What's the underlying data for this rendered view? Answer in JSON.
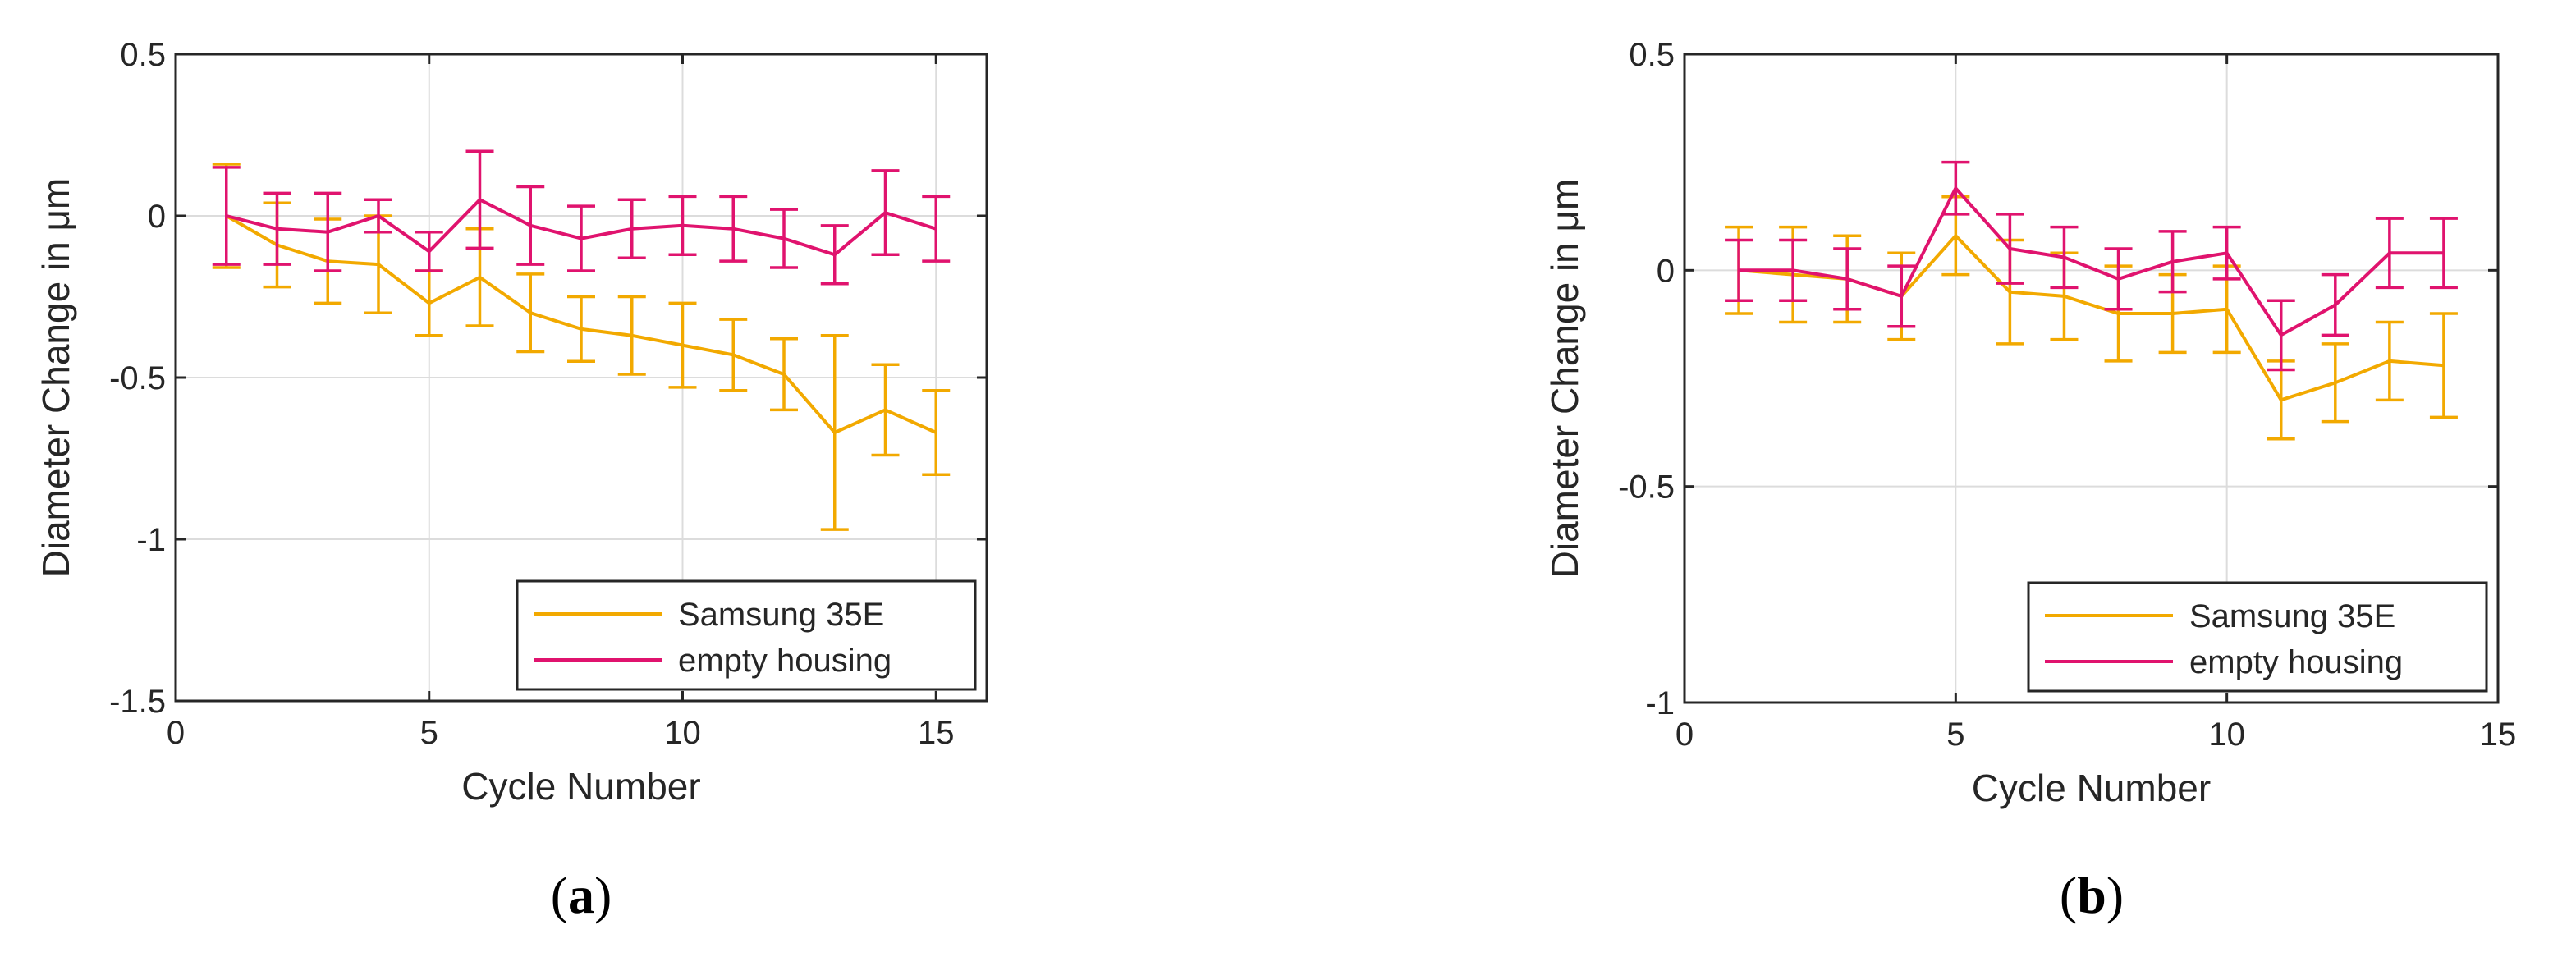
{
  "figure": {
    "colors": {
      "samsung": "#f2a900",
      "empty": "#e0136e",
      "grid": "#dcdcdc",
      "axis": "#262626"
    }
  },
  "chart_data": [
    {
      "type": "line",
      "panel_label": "a",
      "title": "",
      "xlabel": "Cycle Number",
      "ylabel": "Diameter Change in μm",
      "xlim": [
        0,
        16
      ],
      "ylim": [
        -1.5,
        0.5
      ],
      "xticks": [
        0,
        5,
        10,
        15
      ],
      "xtick_labels": [
        "0",
        "5",
        "10",
        "15"
      ],
      "yticks": [
        0.5,
        0,
        -0.5,
        -1,
        -1.5
      ],
      "ytick_labels": [
        "0.5",
        "0",
        "-0.5",
        "-1",
        "-1.5"
      ],
      "grid": true,
      "legend_position": "bottom-right",
      "series": [
        {
          "name": "Samsung 35E",
          "color_key": "samsung",
          "x": [
            1,
            2,
            3,
            4,
            5,
            6,
            7,
            8,
            9,
            10,
            11,
            12,
            13,
            14,
            15
          ],
          "values": [
            0,
            -0.09,
            -0.14,
            -0.15,
            -0.27,
            -0.19,
            -0.3,
            -0.35,
            -0.37,
            -0.4,
            -0.43,
            -0.49,
            -0.67,
            -0.6,
            -0.67
          ],
          "errors": [
            0.16,
            0.13,
            0.13,
            0.15,
            0.1,
            0.15,
            0.12,
            0.1,
            0.12,
            0.13,
            0.11,
            0.11,
            0.3,
            0.14,
            0.13
          ]
        },
        {
          "name": "empty housing",
          "color_key": "empty",
          "x": [
            1,
            2,
            3,
            4,
            5,
            6,
            7,
            8,
            9,
            10,
            11,
            12,
            13,
            14,
            15
          ],
          "values": [
            0,
            -0.04,
            -0.05,
            0,
            -0.11,
            0.05,
            -0.03,
            -0.07,
            -0.04,
            -0.03,
            -0.04,
            -0.07,
            -0.12,
            0.01,
            -0.04
          ],
          "errors": [
            0.15,
            0.11,
            0.12,
            0.05,
            0.06,
            0.15,
            0.12,
            0.1,
            0.09,
            0.09,
            0.1,
            0.09,
            0.09,
            0.13,
            0.1
          ]
        }
      ]
    },
    {
      "type": "line",
      "panel_label": "b",
      "title": "",
      "xlabel": "Cycle Number",
      "ylabel": "Diameter Change in μm",
      "xlim": [
        0,
        15
      ],
      "ylim": [
        -1,
        0.5
      ],
      "xticks": [
        0,
        5,
        10,
        15
      ],
      "xtick_labels": [
        "0",
        "5",
        "10",
        "15"
      ],
      "yticks": [
        0.5,
        0,
        -0.5,
        -1
      ],
      "ytick_labels": [
        "0.5",
        "0",
        "-0.5",
        "-1"
      ],
      "grid": true,
      "legend_position": "bottom-right",
      "series": [
        {
          "name": "Samsung 35E",
          "color_key": "samsung",
          "x": [
            1,
            2,
            3,
            4,
            5,
            6,
            7,
            8,
            9,
            10,
            11,
            12,
            13,
            14
          ],
          "values": [
            0,
            -0.01,
            -0.02,
            -0.06,
            0.08,
            -0.05,
            -0.06,
            -0.1,
            -0.1,
            -0.09,
            -0.3,
            -0.26,
            -0.21,
            -0.22
          ],
          "errors": [
            0.1,
            0.11,
            0.1,
            0.1,
            0.09,
            0.12,
            0.1,
            0.11,
            0.09,
            0.1,
            0.09,
            0.09,
            0.09,
            0.12
          ]
        },
        {
          "name": "empty housing",
          "color_key": "empty",
          "x": [
            1,
            2,
            3,
            4,
            5,
            6,
            7,
            8,
            9,
            10,
            11,
            12,
            13,
            14
          ],
          "values": [
            0,
            0,
            -0.02,
            -0.06,
            0.19,
            0.05,
            0.03,
            -0.02,
            0.02,
            0.04,
            -0.15,
            -0.08,
            0.04,
            0.04
          ],
          "errors": [
            0.07,
            0.07,
            0.07,
            0.07,
            0.06,
            0.08,
            0.07,
            0.07,
            0.07,
            0.06,
            0.08,
            0.07,
            0.08,
            0.08
          ]
        }
      ]
    }
  ]
}
